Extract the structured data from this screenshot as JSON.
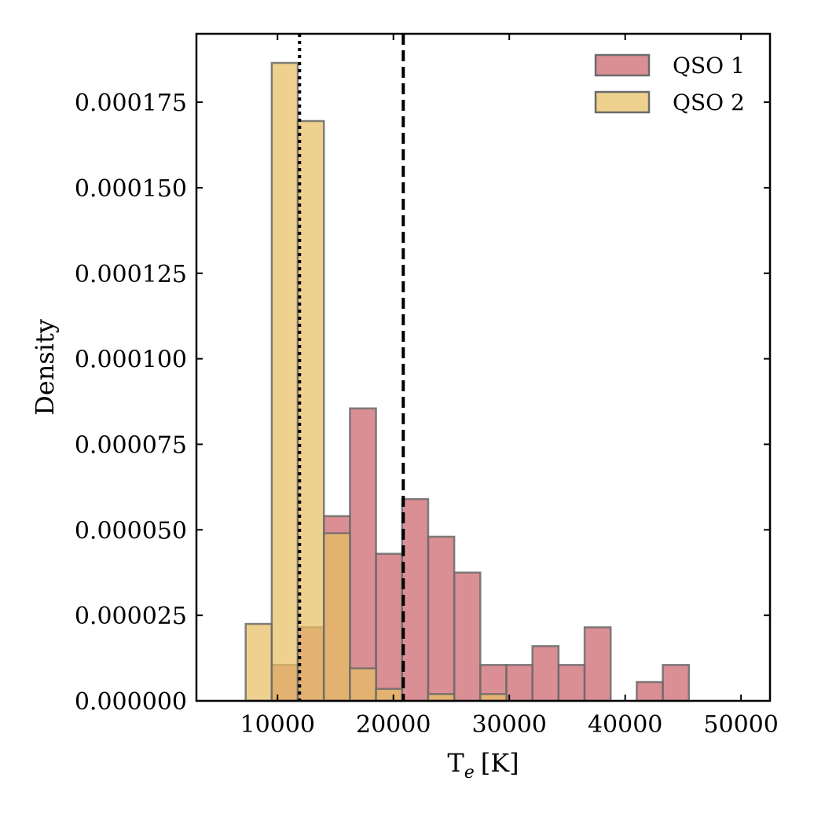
{
  "chart_data": {
    "type": "histogram",
    "xlabel": "T",
    "xlabel_sub": "e",
    "xlabel_unit": "[K]",
    "ylabel": "Density",
    "xlim": [
      3000,
      52500
    ],
    "ylim": [
      0,
      0.000195
    ],
    "xticks": [
      10000,
      20000,
      30000,
      40000,
      50000
    ],
    "yticks": [
      {
        "value": 0,
        "label": "0.000000"
      },
      {
        "value": 2.5e-05,
        "label": "0.000025"
      },
      {
        "value": 5e-05,
        "label": "0.000050"
      },
      {
        "value": 7.5e-05,
        "label": "0.000075"
      },
      {
        "value": 0.0001,
        "label": "0.000100"
      },
      {
        "value": 0.000125,
        "label": "0.000125"
      },
      {
        "value": 0.00015,
        "label": "0.000150"
      },
      {
        "value": 0.000175,
        "label": "0.000175"
      }
    ],
    "legend_position": "top-right",
    "series": [
      {
        "name": "QSO 1",
        "color": "#cd6a72",
        "opacity": 0.75,
        "edges": [
          5000,
          7250,
          9500,
          11750,
          14000,
          16250,
          18500,
          20750,
          23000,
          25250,
          27500,
          29750,
          32000,
          34250,
          36500,
          38750,
          41000,
          43250,
          45500,
          47750,
          50000
        ],
        "values": [
          0,
          0,
          1.05e-05,
          2.15e-05,
          5.4e-05,
          8.55e-05,
          4.3e-05,
          5.9e-05,
          4.8e-05,
          3.75e-05,
          1.05e-05,
          1.05e-05,
          1.6e-05,
          1.05e-05,
          2.15e-05,
          0,
          5.5e-06,
          1.05e-05,
          0,
          0
        ]
      },
      {
        "name": "QSO 2",
        "color": "#e8bf63",
        "opacity": 0.72,
        "edges": [
          5000,
          7250,
          9500,
          11750,
          14000,
          16250,
          18500,
          20750,
          23000,
          25250,
          27500,
          29750,
          32000,
          34250,
          36500,
          38750,
          41000,
          43250,
          45500,
          47750,
          50000
        ],
        "values": [
          0,
          2.25e-05,
          0.0001865,
          0.0001695,
          4.9e-05,
          9.5e-06,
          3.5e-06,
          0,
          2e-06,
          0,
          2e-06,
          0,
          0,
          0,
          0,
          0,
          0,
          0,
          0,
          0
        ]
      }
    ],
    "vlines": [
      {
        "x": 11900,
        "style": "dotted"
      },
      {
        "x": 20850,
        "style": "dashed"
      }
    ]
  }
}
